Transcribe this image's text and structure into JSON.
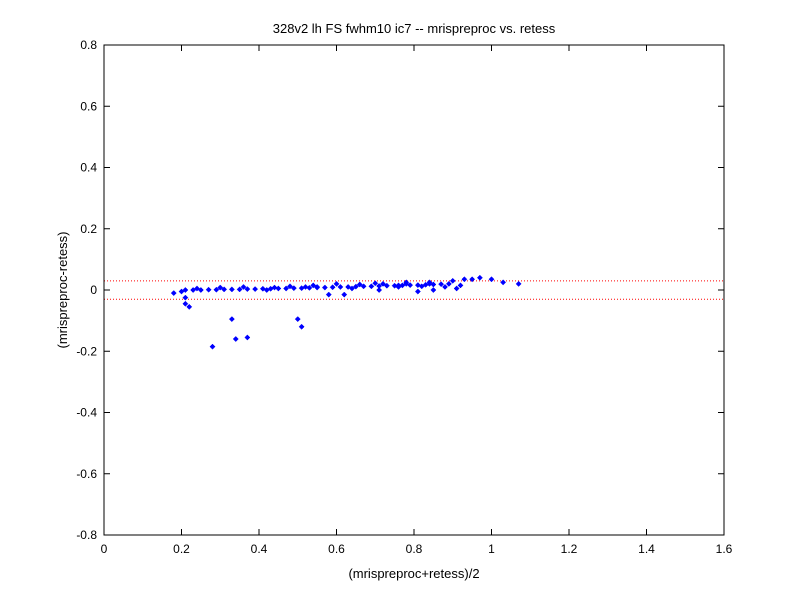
{
  "chart_data": {
    "type": "scatter",
    "title": "328v2 lh FS fwhm10 ic7 -- mrispreproc vs. retess",
    "xlabel": "(mrispreproc+retess)/2",
    "ylabel": "(mrispreproc-retess)",
    "xlim": [
      0,
      1.6
    ],
    "ylim": [
      -0.8,
      0.8
    ],
    "xticks": [
      0,
      0.2,
      0.4,
      0.6,
      0.8,
      1.0,
      1.2,
      1.4,
      1.6
    ],
    "yticks": [
      -0.8,
      -0.6,
      -0.4,
      -0.2,
      0,
      0.2,
      0.4,
      0.6,
      0.8
    ],
    "xtick_labels": [
      "0",
      "0.2",
      "0.4",
      "0.6",
      "0.8",
      "1",
      "1.2",
      "1.4",
      "1.6"
    ],
    "ytick_labels": [
      "-0.8",
      "-0.6",
      "-0.4",
      "-0.2",
      "0",
      "0.2",
      "0.4",
      "0.6",
      "0.8"
    ],
    "grid": false,
    "colors": {
      "points": "#0000ff",
      "reference_lines": "#ff0000",
      "axes": "#000000"
    },
    "reference_lines": [
      {
        "orientation": "horizontal",
        "y": 0.03,
        "style": "dotted"
      },
      {
        "orientation": "horizontal",
        "y": -0.03,
        "style": "dotted"
      }
    ],
    "series": [
      {
        "marker": "diamond",
        "x": [
          0.18,
          0.2,
          0.21,
          0.21,
          0.22,
          0.28,
          0.33,
          0.34,
          0.37,
          0.5,
          0.51,
          0.55,
          0.58,
          0.62,
          0.71,
          0.76,
          0.78,
          0.81,
          0.84,
          0.85,
          0.88,
          0.91,
          0.92,
          0.93,
          0.95,
          0.97,
          1.0,
          1.03,
          1.07,
          0.21,
          0.23,
          0.25,
          0.27,
          0.29,
          0.31,
          0.33,
          0.35,
          0.37,
          0.39,
          0.41,
          0.43,
          0.45,
          0.47,
          0.49,
          0.51,
          0.53,
          0.55,
          0.57,
          0.59,
          0.61,
          0.63,
          0.65,
          0.67,
          0.69,
          0.71,
          0.73,
          0.75,
          0.77,
          0.79,
          0.81,
          0.83,
          0.85,
          0.87,
          0.89,
          0.24,
          0.3,
          0.36,
          0.42,
          0.48,
          0.54,
          0.6,
          0.66,
          0.72,
          0.78,
          0.84,
          0.9,
          0.44,
          0.52,
          0.64,
          0.7,
          0.76,
          0.82
        ],
        "y": [
          -0.01,
          -0.005,
          -0.045,
          -0.025,
          -0.055,
          -0.185,
          -0.095,
          -0.16,
          -0.155,
          -0.095,
          -0.12,
          0.01,
          -0.015,
          -0.015,
          0.0,
          0.015,
          0.02,
          -0.005,
          0.02,
          0.0,
          0.01,
          0.005,
          0.015,
          0.035,
          0.035,
          0.04,
          0.035,
          0.025,
          0.02,
          0.0,
          0.0,
          0.0,
          0.001,
          0.001,
          0.002,
          0.002,
          0.002,
          0.003,
          0.003,
          0.004,
          0.004,
          0.005,
          0.005,
          0.006,
          0.006,
          0.007,
          0.008,
          0.008,
          0.009,
          0.01,
          0.01,
          0.011,
          0.012,
          0.012,
          0.013,
          0.014,
          0.014,
          0.015,
          0.016,
          0.016,
          0.017,
          0.018,
          0.019,
          0.02,
          0.005,
          0.008,
          0.01,
          0.0,
          0.012,
          0.015,
          0.02,
          0.018,
          0.02,
          0.025,
          0.025,
          0.03,
          0.008,
          0.01,
          0.005,
          0.022,
          0.01,
          0.012
        ]
      }
    ]
  }
}
